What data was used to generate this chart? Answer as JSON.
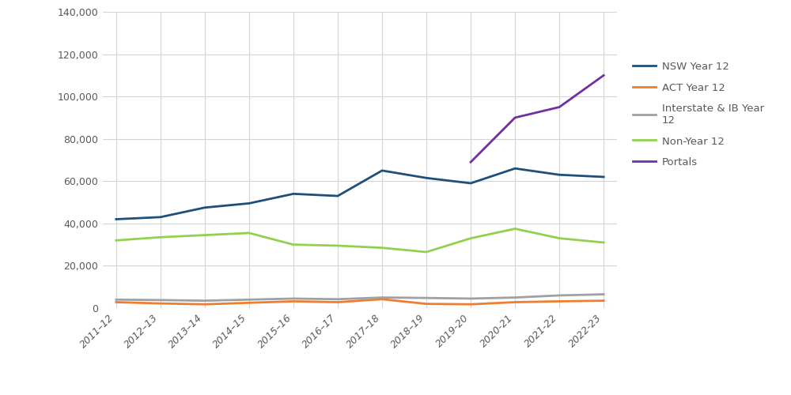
{
  "x_labels": [
    "2011–12",
    "2012–13",
    "2013–14",
    "2014–15",
    "2015–16",
    "2016–17",
    "2017–18",
    "2018–19",
    "2019-20",
    "2020-21",
    "2021-22",
    "2022-23"
  ],
  "series": {
    "NSW Year 12": [
      42000,
      43000,
      47500,
      49500,
      54000,
      53000,
      65000,
      61500,
      59000,
      66000,
      63000,
      62000
    ],
    "ACT Year 12": [
      2800,
      2200,
      1800,
      2500,
      3200,
      2800,
      4200,
      2000,
      1800,
      2800,
      3200,
      3500
    ],
    "Interstate & IB Year 12": [
      4000,
      3800,
      3500,
      4000,
      4500,
      4200,
      5000,
      4800,
      4500,
      5000,
      6000,
      6500
    ],
    "Non-Year 12": [
      32000,
      33500,
      34500,
      35500,
      30000,
      29500,
      28500,
      26500,
      33000,
      37500,
      33000,
      31000
    ],
    "Portals": [
      null,
      null,
      null,
      null,
      null,
      null,
      null,
      null,
      69000,
      90000,
      95000,
      110000
    ]
  },
  "colors": {
    "NSW Year 12": "#1f4e79",
    "ACT Year 12": "#ed7d31",
    "Interstate & IB Year 12": "#a0a0a0",
    "Non-Year 12": "#92d050",
    "Portals": "#7030a0"
  },
  "ylim": [
    0,
    140000
  ],
  "yticks": [
    0,
    20000,
    40000,
    60000,
    80000,
    100000,
    120000,
    140000
  ],
  "ytick_labels": [
    "0",
    "20,000",
    "40,000",
    "60,000",
    "80,000",
    "100,000",
    "120,000",
    "140,000"
  ],
  "line_width": 2.0,
  "bg_color": "#ffffff",
  "grid_color": "#d4d4d4",
  "tick_label_color": "#595959",
  "legend_entries": [
    {
      "key": "NSW Year 12",
      "label": "NSW Year 12"
    },
    {
      "key": "ACT Year 12",
      "label": "ACT Year 12"
    },
    {
      "key": "Interstate & IB Year 12",
      "label": "Interstate & IB Year\n12"
    },
    {
      "key": "Non-Year 12",
      "label": "Non-Year 12"
    },
    {
      "key": "Portals",
      "label": "Portals"
    }
  ]
}
